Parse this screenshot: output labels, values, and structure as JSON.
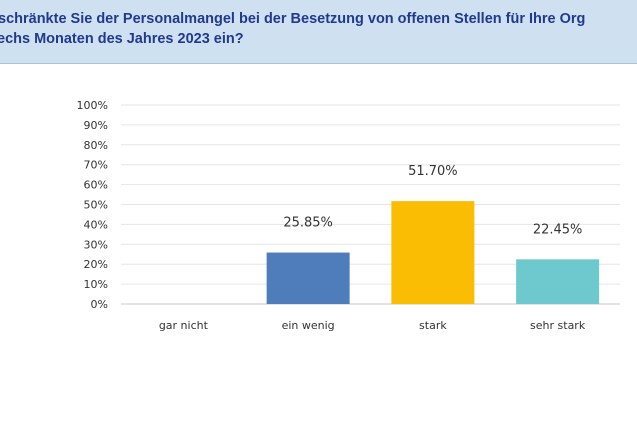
{
  "header": {
    "line1": "schränkte Sie der Personalmangel bei der Besetzung von offenen Stellen für Ihre Org",
    "line2": "echs Monaten des Jahres 2023 ein?"
  },
  "colors": {
    "banner_bg": "#cfe0f1",
    "title_text": "#1f3a8f",
    "bar_colors": [
      "#4f7cbb",
      "#4f7cbb",
      "#fbbc04",
      "#6ec9cf"
    ]
  },
  "chart_data": {
    "type": "bar",
    "categories": [
      "gar nicht",
      "ein wenig",
      "stark",
      "sehr stark"
    ],
    "values": [
      0,
      25.85,
      51.7,
      22.45
    ],
    "value_labels": [
      "",
      "25.85%",
      "51.70%",
      "22.45%"
    ],
    "ylim": [
      0,
      100
    ],
    "yticks": [
      0,
      10,
      20,
      30,
      40,
      50,
      60,
      70,
      80,
      90,
      100
    ],
    "ytick_labels": [
      "0%",
      "10%",
      "20%",
      "30%",
      "40%",
      "50%",
      "60%",
      "70%",
      "80%",
      "90%",
      "100%"
    ],
    "grid": true,
    "title": "",
    "xlabel": "",
    "ylabel": ""
  }
}
